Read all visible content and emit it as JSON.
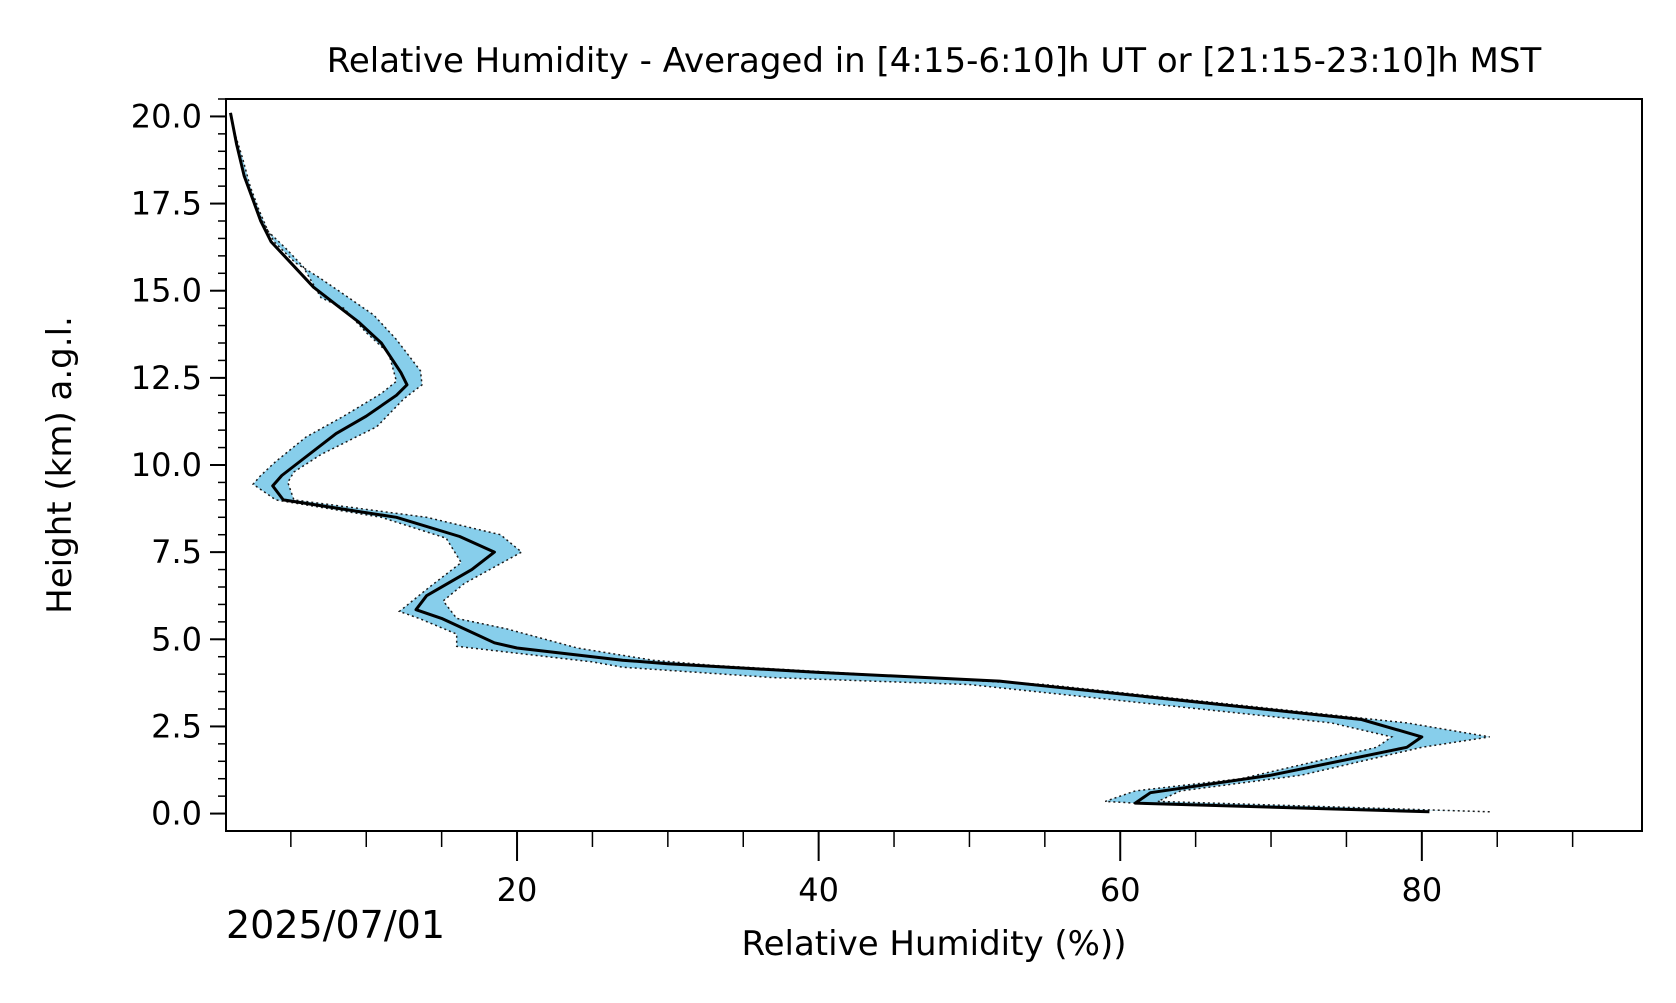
{
  "chart_data": {
    "type": "line",
    "title": "Relative Humidity - Averaged in [4:15-6:10]h UT or [21:15-23:10]h MST",
    "xlabel": "Relative Humidity (%))",
    "ylabel": "Height (km) a.g.l.",
    "date_label": "2025/07/01",
    "xlim": [
      0.7,
      94.6
    ],
    "ylim": [
      -0.5,
      20.5
    ],
    "x_ticks": [
      20,
      40,
      60,
      80
    ],
    "x_tick_labels": [
      "20",
      "40",
      "60",
      "80"
    ],
    "x_minor_ticks": [
      5,
      10,
      15,
      25,
      30,
      35,
      45,
      50,
      55,
      65,
      70,
      75,
      85,
      90
    ],
    "y_ticks": [
      0.0,
      2.5,
      5.0,
      7.5,
      10.0,
      12.5,
      15.0,
      17.5,
      20.0
    ],
    "y_tick_labels": [
      "0.0",
      "2.5",
      "5.0",
      "7.5",
      "10.0",
      "12.5",
      "15.0",
      "17.5",
      "20.0"
    ],
    "y_minor_step": 0.5,
    "grid": false,
    "colors": {
      "band": "#87ceeb",
      "line": "#000000",
      "axes": "#000000"
    },
    "series": [
      {
        "style": "mean",
        "x": [
          80.5,
          61,
          62,
          70,
          79,
          80,
          76,
          52,
          40,
          30,
          27,
          20,
          18.5,
          15,
          13.3,
          14,
          17,
          18.5,
          16.2,
          12,
          4.5,
          3.8,
          4.4,
          5.6,
          8,
          10,
          12,
          12.7,
          12.3,
          11,
          9.5,
          8,
          6.5,
          5,
          3.7,
          3,
          2.5,
          1.9,
          1.4,
          1.0
        ],
        "y": [
          0.05,
          0.3,
          0.6,
          1.1,
          1.9,
          2.2,
          2.7,
          3.8,
          4.05,
          4.3,
          4.4,
          4.75,
          4.9,
          5.6,
          5.85,
          6.25,
          7.0,
          7.5,
          7.95,
          8.5,
          9.0,
          9.4,
          9.7,
          10.1,
          10.9,
          11.4,
          12.0,
          12.3,
          12.65,
          13.5,
          14.1,
          14.6,
          15.1,
          15.8,
          16.4,
          17.0,
          17.6,
          18.3,
          19.2,
          20.1
        ]
      },
      {
        "style": "band-upper",
        "x": [
          84.5,
          62.5,
          64,
          72,
          80,
          84.5,
          79,
          55,
          43,
          33,
          29,
          24,
          19.3,
          16,
          15.1,
          16.5,
          20.3,
          18.9,
          14,
          5.2,
          4.8,
          5.2,
          7,
          10.7,
          12.5,
          13.7,
          13.6,
          12,
          10.5,
          8.5,
          6.8,
          5.3,
          3.9,
          3.1,
          2.5,
          1.9,
          1.4,
          1.0
        ],
        "y": [
          0.05,
          0.35,
          0.65,
          1.1,
          1.9,
          2.2,
          2.6,
          3.7,
          4.0,
          4.25,
          4.4,
          4.75,
          5.3,
          5.6,
          6.1,
          6.6,
          7.5,
          8.0,
          8.5,
          9.0,
          9.5,
          9.8,
          10.3,
          11.1,
          11.9,
          12.3,
          12.7,
          13.6,
          14.3,
          14.9,
          15.4,
          15.8,
          16.4,
          17.0,
          17.6,
          18.3,
          19.2,
          20.1
        ]
      },
      {
        "style": "band-lower",
        "x": [
          61,
          59,
          61,
          68,
          77,
          78,
          74,
          50,
          37,
          27,
          25,
          16,
          16,
          13.5,
          12.2,
          14.2,
          16.3,
          15.3,
          11,
          4,
          2.5,
          3,
          4,
          6,
          8.5,
          11,
          12,
          11.5,
          10,
          8.5,
          7,
          5.8,
          4.7,
          3.5,
          2.9,
          2.3,
          1.8,
          1.3,
          1.0
        ],
        "y": [
          0.3,
          0.35,
          0.65,
          1.0,
          1.9,
          2.2,
          2.6,
          3.7,
          3.9,
          4.2,
          4.35,
          4.8,
          5.15,
          5.6,
          5.8,
          6.5,
          7.2,
          7.9,
          8.5,
          9.0,
          9.45,
          9.7,
          10.1,
          10.8,
          11.4,
          12.05,
          12.4,
          13.2,
          13.8,
          14.5,
          14.8,
          15.7,
          16.2,
          16.7,
          17.3,
          18.0,
          18.8,
          19.5,
          20.1
        ]
      }
    ]
  }
}
